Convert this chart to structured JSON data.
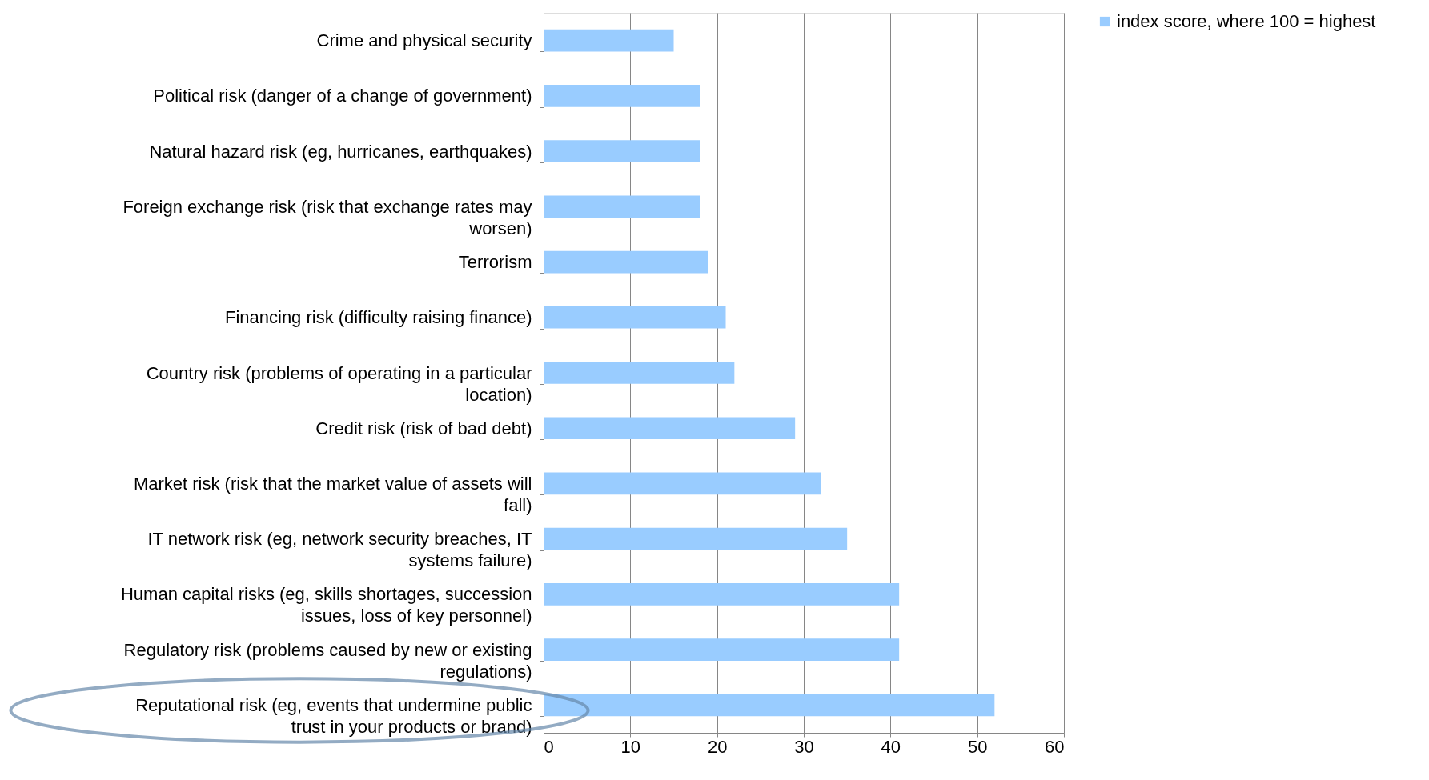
{
  "chart_data": {
    "type": "bar",
    "orientation": "horizontal",
    "categories": [
      "Crime and physical security",
      "Political risk (danger of a change of government)",
      "Natural hazard risk (eg, hurricanes, earthquakes)",
      "Foreign exchange risk (risk that exchange rates may worsen)",
      "Terrorism",
      "Financing risk (difficulty raising finance)",
      "Country risk (problems of operating in a particular location)",
      "Credit risk (risk of bad debt)",
      "Market risk (risk that the market value of assets will fall)",
      "IT network risk (eg, network security breaches, IT systems failure)",
      "Human capital risks (eg, skills shortages, succession issues, loss of key personnel)",
      "Regulatory risk (problems caused by new or existing regulations)",
      "Reputational risk (eg, events that undermine public trust in your products or brand)"
    ],
    "series": [
      {
        "name": "index score, where 100 = highest",
        "color": "#99ccff",
        "values": [
          15,
          18,
          18,
          18,
          19,
          21,
          22,
          29,
          32,
          35,
          41,
          41,
          52
        ]
      }
    ],
    "xlim": [
      0,
      60
    ],
    "xticks": [
      0,
      10,
      20,
      30,
      40,
      50,
      60
    ],
    "grid": "x",
    "legend": "right"
  }
}
